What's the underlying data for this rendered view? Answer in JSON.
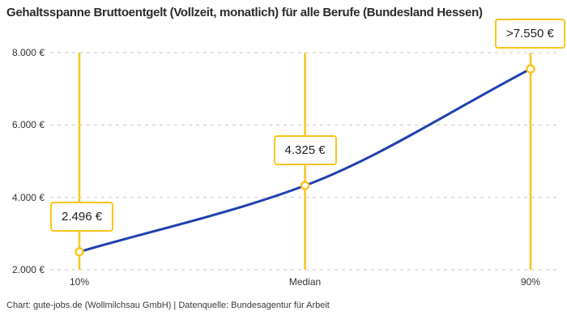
{
  "header": {
    "title": "Gehaltsspanne Bruttoentgelt (Vollzeit, monatlich) für alle Berufe (Bundesland Hessen)"
  },
  "footer": {
    "attribution": "Chart: gute-jobs.de (Wollmilchsau GmbH) | Datenquelle: Bundesagentur für Arbeit"
  },
  "colors": {
    "accent_yellow": "#FCC41D",
    "line_blue": "#1F3FAF",
    "grid_gray": "#C8C8C8",
    "text_dark": "#2B2B2B",
    "label_text": "#222222"
  },
  "chart_data": {
    "type": "line",
    "title": "Gehaltsspanne Bruttoentgelt (Vollzeit, monatlich) für alle Berufe (Bundesland Hessen)",
    "xlabel": "",
    "ylabel": "",
    "categories": [
      "10%",
      "Median",
      "90%"
    ],
    "values": [
      2496,
      4325,
      7550
    ],
    "points": [
      {
        "category": "10%",
        "value": 2496,
        "label": "2.496 €"
      },
      {
        "category": "Median",
        "value": 4325,
        "label": "4.325 €"
      },
      {
        "category": "90%",
        "value": 7550,
        "label": ">7.550 €"
      }
    ],
    "ylim": [
      2000,
      8000
    ],
    "yticks": [
      {
        "value": 8000,
        "label": "8.000 €"
      },
      {
        "value": 6000,
        "label": "6.000 €"
      },
      {
        "value": 4000,
        "label": "4.000 €"
      },
      {
        "value": 2000,
        "label": "2.000 €"
      }
    ],
    "grid": "horizontal-dashed",
    "legend": "none",
    "annotations": "vertical accent line, open circle marker and value callout box at each percentile"
  }
}
